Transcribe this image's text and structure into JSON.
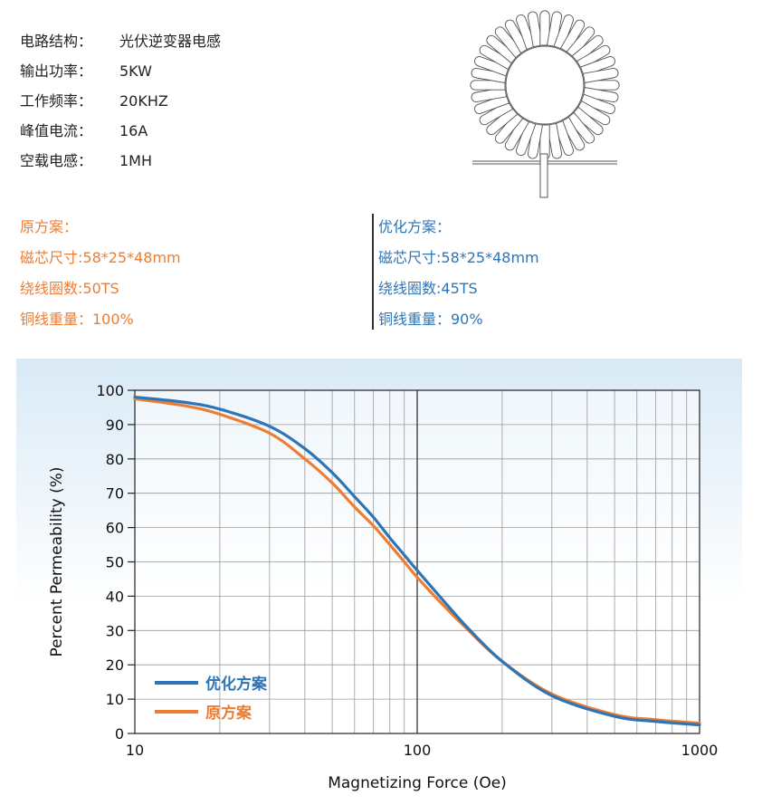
{
  "specs": [
    {
      "label": "电路结构：",
      "value": "光伏逆变器电感"
    },
    {
      "label": "输出功率：",
      "value": "5KW"
    },
    {
      "label": "工作频率：",
      "value": "20KHZ"
    },
    {
      "label": "峰值电流：",
      "value": "16A"
    },
    {
      "label": "空载电感：",
      "value": "1MH"
    }
  ],
  "original": {
    "title": "原方案：",
    "core": "磁芯尺寸:58*25*48mm",
    "turns": "绕线圈数:50TS",
    "copper": "铜线重量：100%"
  },
  "optimized": {
    "title": "优化方案：",
    "core": "磁芯尺寸:58*25*48mm",
    "turns": "绕线圈数:45TS",
    "copper": "铜线重量：90%"
  },
  "colors": {
    "original": "#ed7d31",
    "optimized": "#2e75b6",
    "chart_bg_top": "#d9eaf6",
    "chart_bg_bottom": "#ffffff"
  },
  "chart_data": {
    "type": "line",
    "xscale": "log",
    "xlim": [
      10,
      1000
    ],
    "ylim": [
      0,
      100
    ],
    "xlabel": "Magnetizing Force (Oe)",
    "ylabel": "Percent Permeability (%)",
    "xticks": [
      "10",
      "100",
      "1000"
    ],
    "yticks": [
      "0",
      "10",
      "20",
      "30",
      "40",
      "50",
      "60",
      "70",
      "80",
      "90",
      "100"
    ],
    "grid": true,
    "legend_position": "bottom-left",
    "series": [
      {
        "name": "优化方案",
        "color": "#2e75b6",
        "x": [
          10,
          15,
          20,
          30,
          40,
          50,
          60,
          70,
          80,
          90,
          100,
          120,
          150,
          200,
          300,
          500,
          700,
          1000
        ],
        "y": [
          98,
          96.5,
          94.5,
          89.5,
          83,
          76,
          69,
          63,
          57,
          52,
          47.5,
          40,
          31,
          21,
          11,
          5,
          3.5,
          2.5
        ]
      },
      {
        "name": "原方案",
        "color": "#ed7d31",
        "x": [
          10,
          15,
          20,
          30,
          40,
          50,
          60,
          70,
          80,
          90,
          100,
          120,
          150,
          200,
          300,
          500,
          700,
          1000
        ],
        "y": [
          97.5,
          95.5,
          93,
          87.5,
          80,
          73,
          66,
          60.5,
          55,
          50,
          45.5,
          38.5,
          30.5,
          21,
          11.5,
          5.5,
          4,
          3
        ]
      }
    ]
  }
}
